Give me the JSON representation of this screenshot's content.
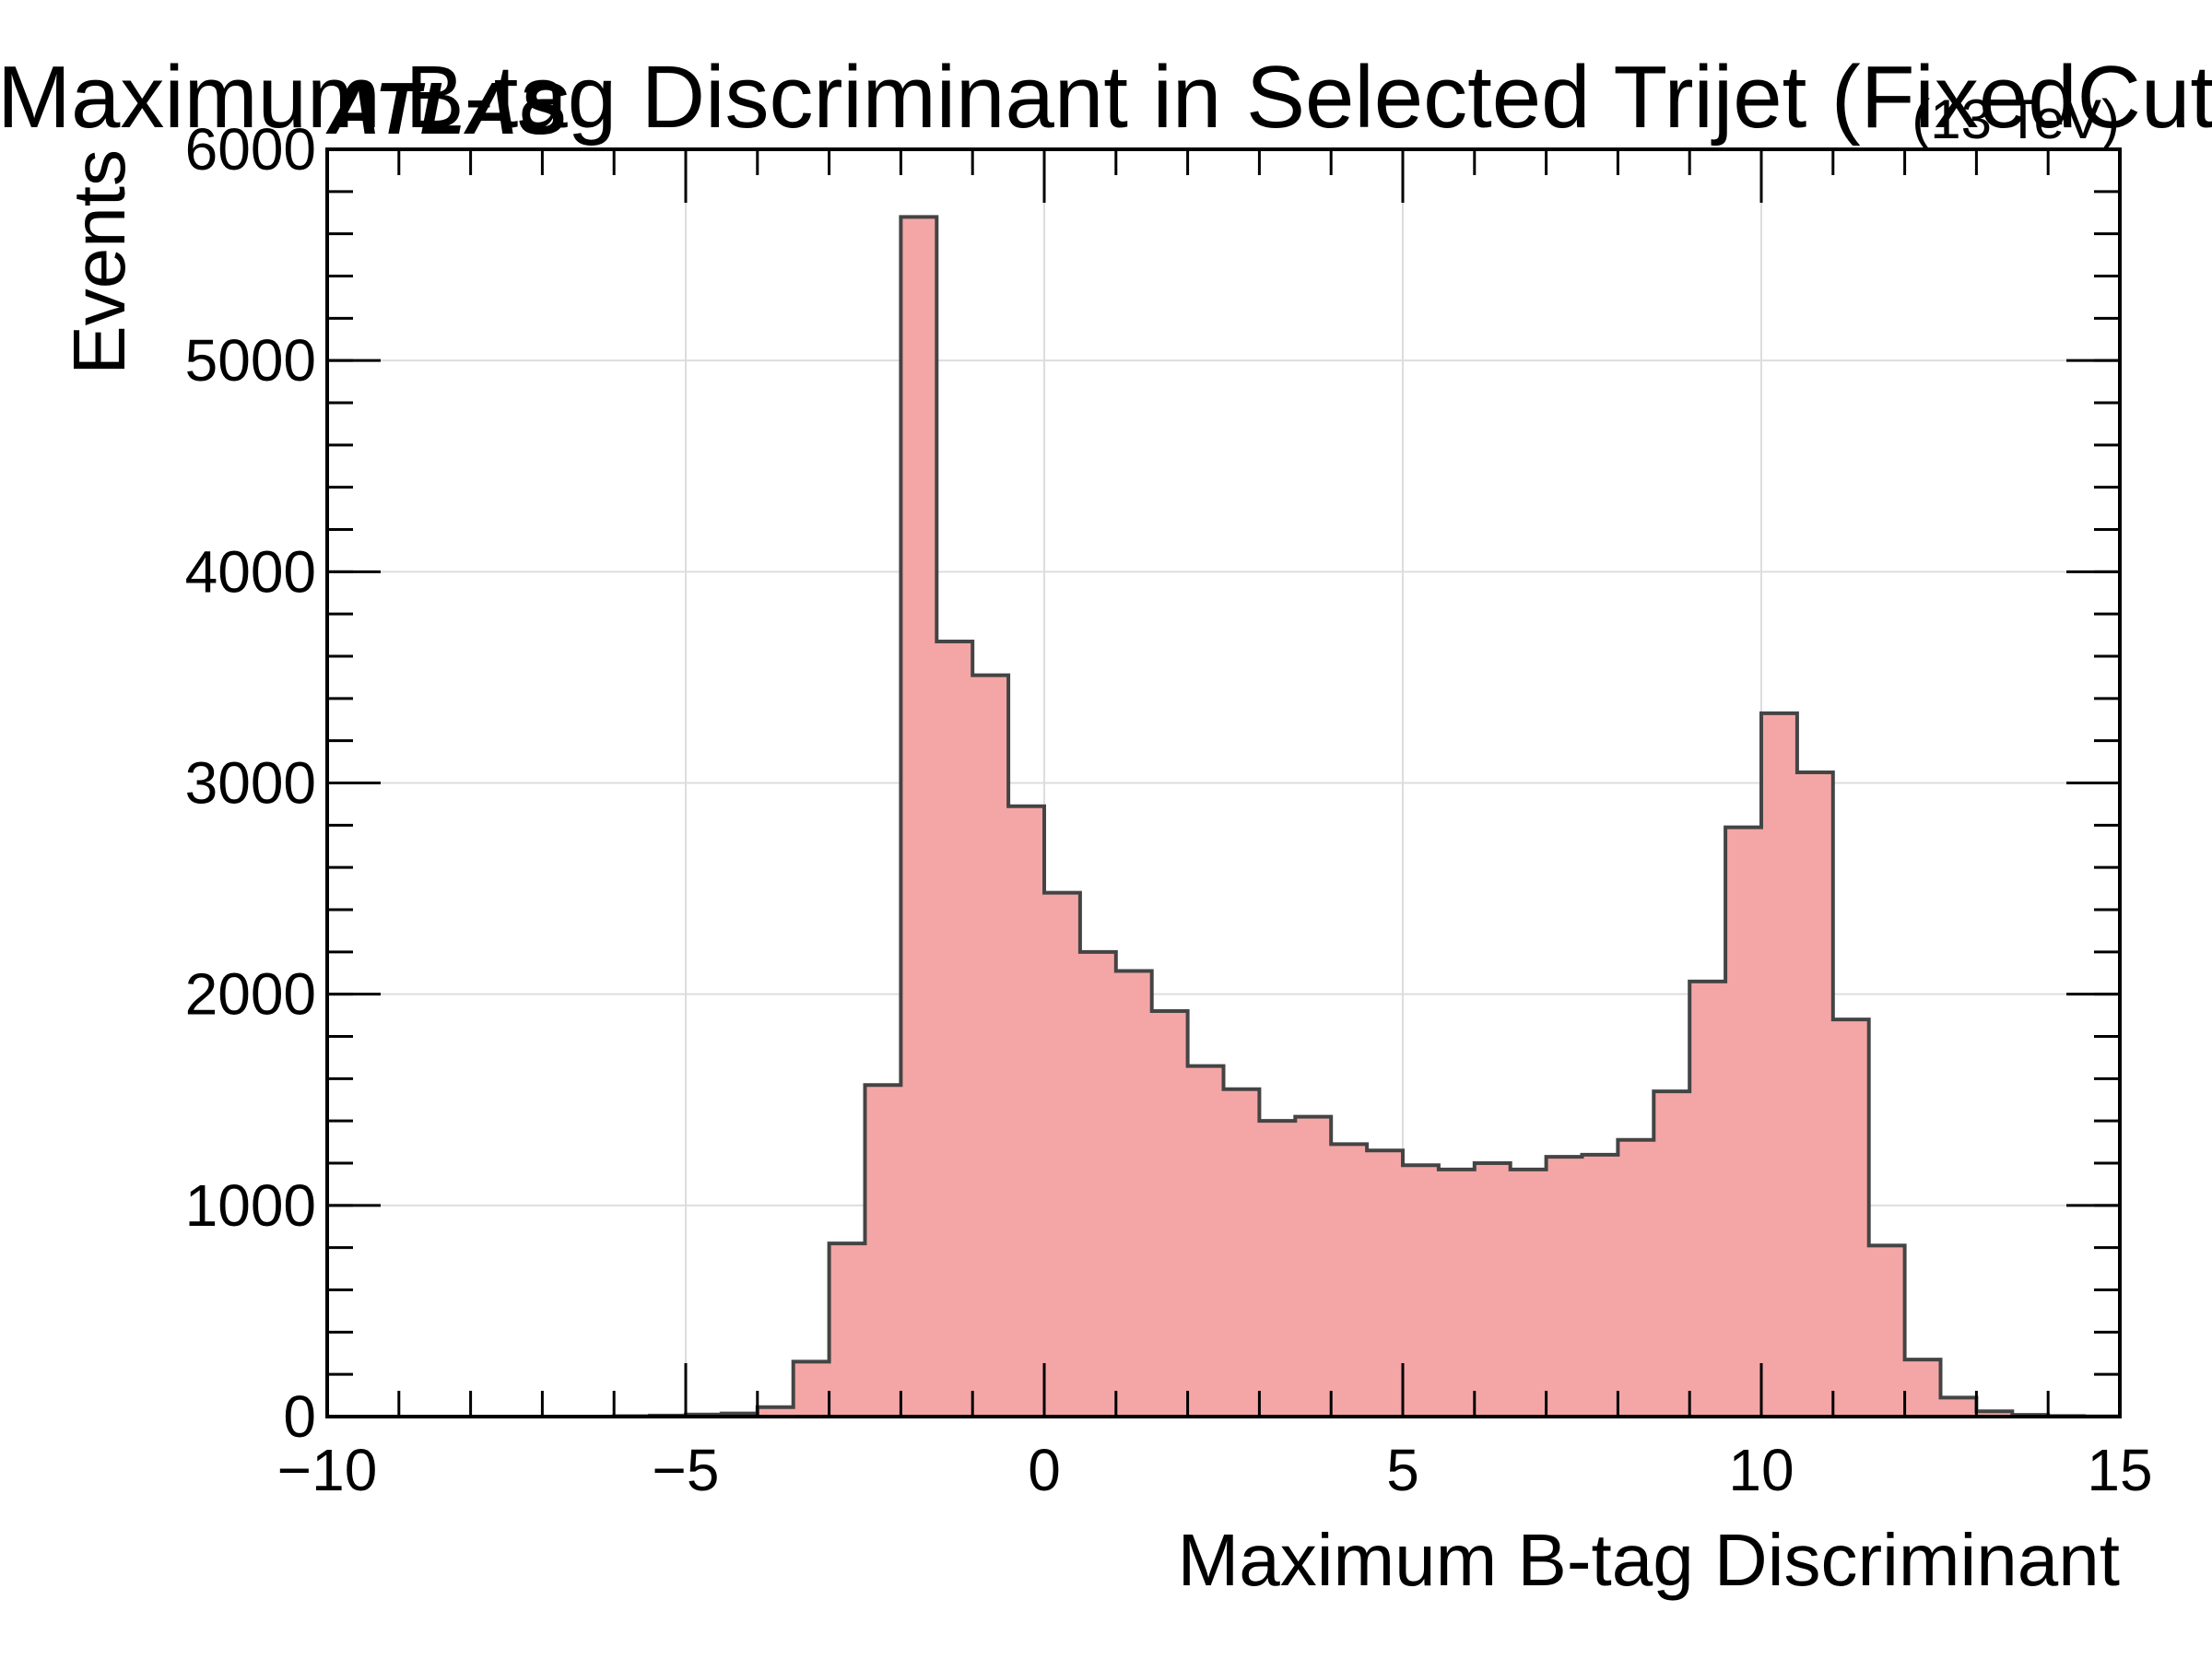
{
  "colors": {
    "bar_fill": "#f4a6a6",
    "bar_edge": "#444444",
    "grid": "#dddddd",
    "axis": "#000000"
  },
  "labels": {
    "experiment": "ATLAS",
    "energy": "(13 TeV)"
  },
  "chart_data": {
    "type": "bar",
    "title": "Maximum B-tag Discriminant in Selected Trijet (FixedCut",
    "xlabel": "Maximum B-tag Discriminant",
    "ylabel": "Events",
    "xlim": [
      -10,
      15
    ],
    "ylim": [
      0,
      6000
    ],
    "xticks": [
      -10,
      -5,
      0,
      5,
      10,
      15
    ],
    "xtick_labels": [
      "−10",
      "−5",
      "0",
      "5",
      "10",
      "15"
    ],
    "yticks": [
      0,
      1000,
      2000,
      3000,
      4000,
      5000,
      6000
    ],
    "ytick_labels": [
      "0",
      "1000",
      "2000",
      "3000",
      "4000",
      "5000",
      "6000"
    ],
    "grid": true,
    "histtype": "stepfilled",
    "bin_width": 0.5,
    "bins_start": -10,
    "values": [
      0,
      0,
      0,
      0,
      0,
      0,
      0,
      0,
      2,
      5,
      10,
      15,
      45,
      260,
      820,
      1570,
      5680,
      3670,
      3510,
      2890,
      2480,
      2200,
      2110,
      1920,
      1660,
      1550,
      1400,
      1420,
      1290,
      1260,
      1190,
      1170,
      1200,
      1170,
      1230,
      1240,
      1310,
      1540,
      2060,
      2790,
      3330,
      3050,
      1880,
      810,
      270,
      90,
      25,
      8,
      3,
      1
    ]
  }
}
